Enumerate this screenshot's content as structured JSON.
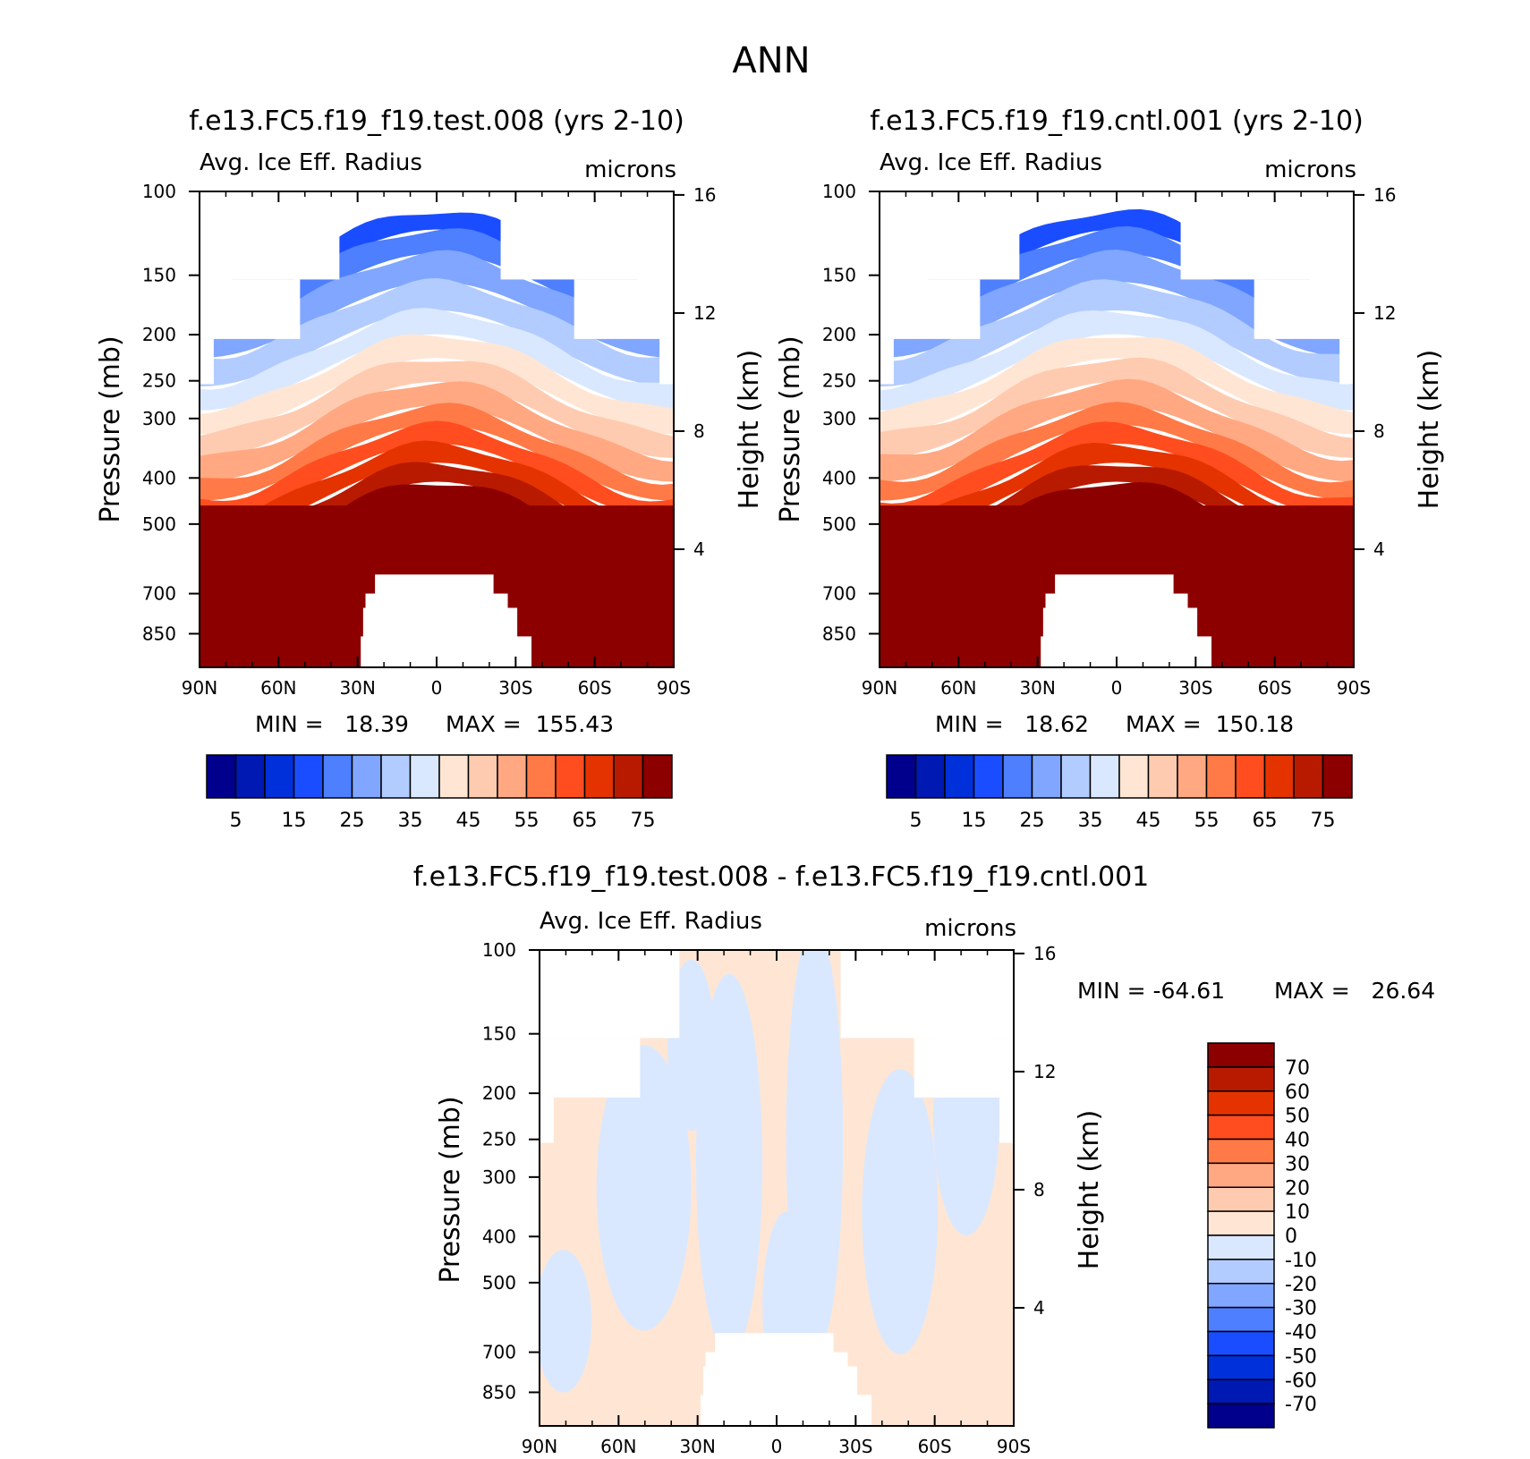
{
  "figure": {
    "main_title": "ANN"
  },
  "colors": {
    "abs_levels": [
      "#00008c",
      "#0019b2",
      "#0030d9",
      "#1a4dff",
      "#4d7fff",
      "#80a6ff",
      "#b3ccff",
      "#d9e8ff",
      "#ffe6d4",
      "#ffcbb0",
      "#ffa882",
      "#ff7a47",
      "#ff4d1f",
      "#e53300",
      "#b81a00",
      "#8c0000"
    ],
    "diff_levels": [
      "#00008c",
      "#0019b2",
      "#0030d9",
      "#1a4dff",
      "#4d7fff",
      "#80a6ff",
      "#b3ccff",
      "#d9e8ff",
      "#ffe6d4",
      "#ffcbb0",
      "#ffa882",
      "#ff7a47",
      "#ff4d1f",
      "#e53300",
      "#b81a00",
      "#8c0000"
    ]
  },
  "chart_data": [
    {
      "type": "heatmap",
      "title": "f.e13.FC5.f19_f19.test.008 (yrs 2-10)",
      "variable_label": "Avg. Ice Eff. Radius",
      "units_label": "microns",
      "ylabel": "Pressure (mb)",
      "y2label": "Height (km)",
      "x_ticks": [
        "90N",
        "60N",
        "30N",
        "0",
        "30S",
        "60S",
        "90S"
      ],
      "x_values": [
        90,
        60,
        30,
        0,
        -30,
        -60,
        -90
      ],
      "y_ticks": [
        "100",
        "150",
        "200",
        "250",
        "300",
        "400",
        "500",
        "700",
        "850"
      ],
      "y_values": [
        100,
        150,
        200,
        250,
        300,
        400,
        500,
        700,
        850
      ],
      "ylim": [
        100,
        1000
      ],
      "y_scale": "log",
      "y2_ticks": [
        "16",
        "12",
        "8",
        "4"
      ],
      "y2_values": [
        16,
        12,
        8,
        4
      ],
      "min_text": "MIN =   18.39",
      "max_text": "MAX =  155.43",
      "colorbar_labels": [
        "5",
        "15",
        "25",
        "35",
        "45",
        "55",
        "65",
        "75"
      ],
      "colorbar_levels": [
        5,
        10,
        15,
        20,
        25,
        30,
        35,
        40,
        45,
        50,
        55,
        60,
        65,
        70,
        75
      ]
    },
    {
      "type": "heatmap",
      "title": "f.e13.FC5.f19_f19.cntl.001 (yrs 2-10)",
      "variable_label": "Avg. Ice Eff. Radius",
      "units_label": "microns",
      "ylabel": "Pressure (mb)",
      "y2label": "Height (km)",
      "x_ticks": [
        "90N",
        "60N",
        "30N",
        "0",
        "30S",
        "60S",
        "90S"
      ],
      "x_values": [
        90,
        60,
        30,
        0,
        -30,
        -60,
        -90
      ],
      "y_ticks": [
        "100",
        "150",
        "200",
        "250",
        "300",
        "400",
        "500",
        "700",
        "850"
      ],
      "y_values": [
        100,
        150,
        200,
        250,
        300,
        400,
        500,
        700,
        850
      ],
      "ylim": [
        100,
        1000
      ],
      "y_scale": "log",
      "y2_ticks": [
        "16",
        "12",
        "8",
        "4"
      ],
      "y2_values": [
        16,
        12,
        8,
        4
      ],
      "min_text": "MIN =   18.62",
      "max_text": "MAX =  150.18",
      "colorbar_labels": [
        "5",
        "15",
        "25",
        "35",
        "45",
        "55",
        "65",
        "75"
      ],
      "colorbar_levels": [
        5,
        10,
        15,
        20,
        25,
        30,
        35,
        40,
        45,
        50,
        55,
        60,
        65,
        70,
        75
      ]
    },
    {
      "type": "heatmap",
      "title": "f.e13.FC5.f19_f19.test.008 - f.e13.FC5.f19_f19.cntl.001",
      "variable_label": "Avg. Ice Eff. Radius",
      "units_label": "microns",
      "ylabel": "Pressure (mb)",
      "y2label": "Height (km)",
      "x_ticks": [
        "90N",
        "60N",
        "30N",
        "0",
        "30S",
        "60S",
        "90S"
      ],
      "x_values": [
        90,
        60,
        30,
        0,
        -30,
        -60,
        -90
      ],
      "y_ticks": [
        "100",
        "150",
        "200",
        "250",
        "300",
        "400",
        "500",
        "700",
        "850"
      ],
      "y_values": [
        100,
        150,
        200,
        250,
        300,
        400,
        500,
        700,
        850
      ],
      "ylim": [
        100,
        1000
      ],
      "y_scale": "log",
      "y2_ticks": [
        "16",
        "12",
        "8",
        "4"
      ],
      "y2_values": [
        16,
        12,
        8,
        4
      ],
      "min_text": "MIN = -64.61",
      "max_text": "MAX =   26.64",
      "colorbar_labels": [
        "70",
        "60",
        "50",
        "40",
        "30",
        "20",
        "10",
        "0",
        "-10",
        "-20",
        "-30",
        "-40",
        "-50",
        "-60",
        "-70"
      ],
      "colorbar_levels": [
        70,
        60,
        50,
        40,
        30,
        20,
        10,
        0,
        -10,
        -20,
        -30,
        -40,
        -50,
        -60,
        -70
      ]
    }
  ]
}
